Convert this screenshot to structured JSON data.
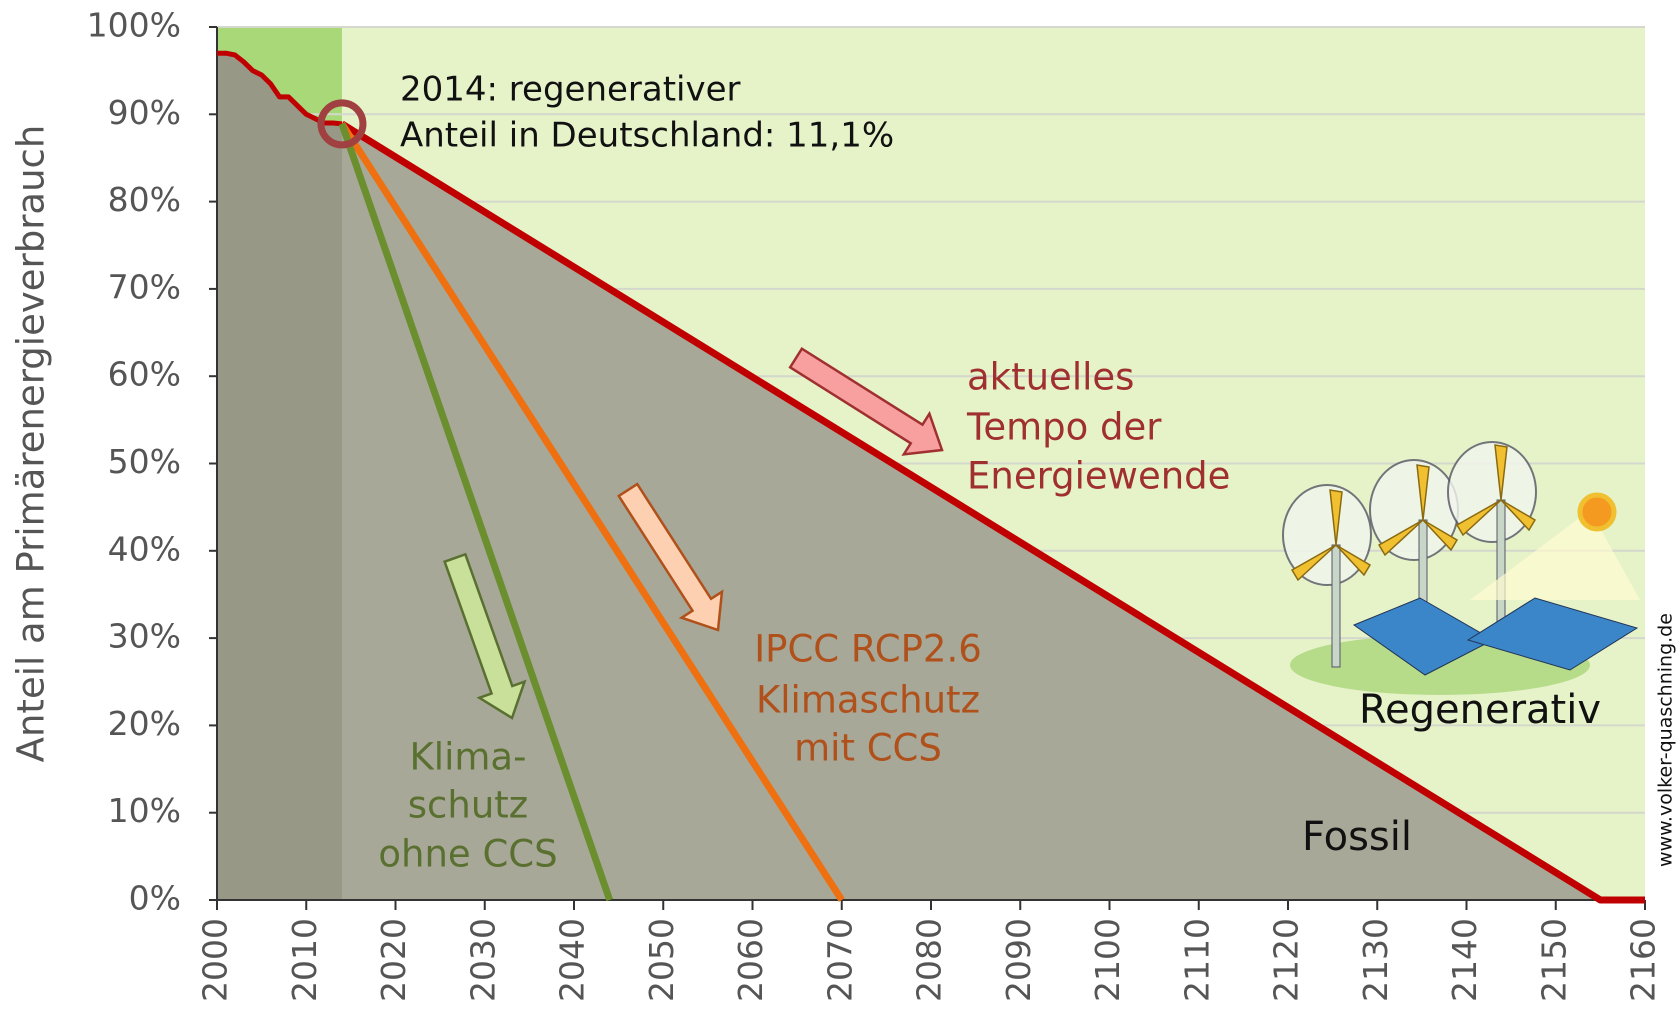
{
  "chart_data": {
    "type": "line",
    "y_axis_label": "Anteil am Primärenergieverbrauch",
    "xlim": [
      2000,
      2160
    ],
    "xticks": [
      2000,
      2010,
      2020,
      2030,
      2040,
      2050,
      2060,
      2070,
      2080,
      2090,
      2100,
      2110,
      2120,
      2130,
      2140,
      2150,
      2160
    ],
    "ylim": [
      0,
      100
    ],
    "yticks": [
      {
        "value": 0,
        "label": "0%"
      },
      {
        "value": 10,
        "label": "10%"
      },
      {
        "value": 20,
        "label": "20%"
      },
      {
        "value": 30,
        "label": "30%"
      },
      {
        "value": 40,
        "label": "40%"
      },
      {
        "value": 50,
        "label": "50%"
      },
      {
        "value": 60,
        "label": "60%"
      },
      {
        "value": 70,
        "label": "70%"
      },
      {
        "value": 80,
        "label": "80%"
      },
      {
        "value": 90,
        "label": "90%"
      },
      {
        "value": 100,
        "label": "100%"
      }
    ],
    "grid": true,
    "series": [
      {
        "color": "#c00000",
        "x": [
          2000,
          2001,
          2002,
          2003,
          2004,
          2005,
          2006,
          2007,
          2008,
          2009,
          2010,
          2011,
          2012,
          2013,
          2014
        ],
        "values": [
          97,
          97,
          96.8,
          96,
          95,
          94.5,
          93.5,
          92,
          92,
          91,
          90,
          89.5,
          89,
          89,
          88.9
        ]
      },
      {
        "color": "#c00000",
        "x": [
          2014,
          2155,
          2160
        ],
        "values": [
          88.9,
          0,
          0
        ]
      },
      {
        "color": "#ee7010",
        "x": [
          2014,
          2070
        ],
        "values": [
          88.9,
          0
        ]
      },
      {
        "color": "#6b8e2e",
        "x": [
          2014,
          2044
        ],
        "values": [
          88.9,
          0
        ]
      }
    ],
    "annotations": [
      "2014: regenerativer",
      "Anteil in Deutschland: 11,1%",
      "aktuelles",
      "Tempo der",
      "Energiewende",
      "IPCC RCP2.6",
      "Klimaschutz",
      "mit CCS",
      "Klima-",
      "schutz",
      "ohne CCS",
      "Regenerativ",
      "Fossil",
      "www.volker-quaschning.de"
    ]
  }
}
